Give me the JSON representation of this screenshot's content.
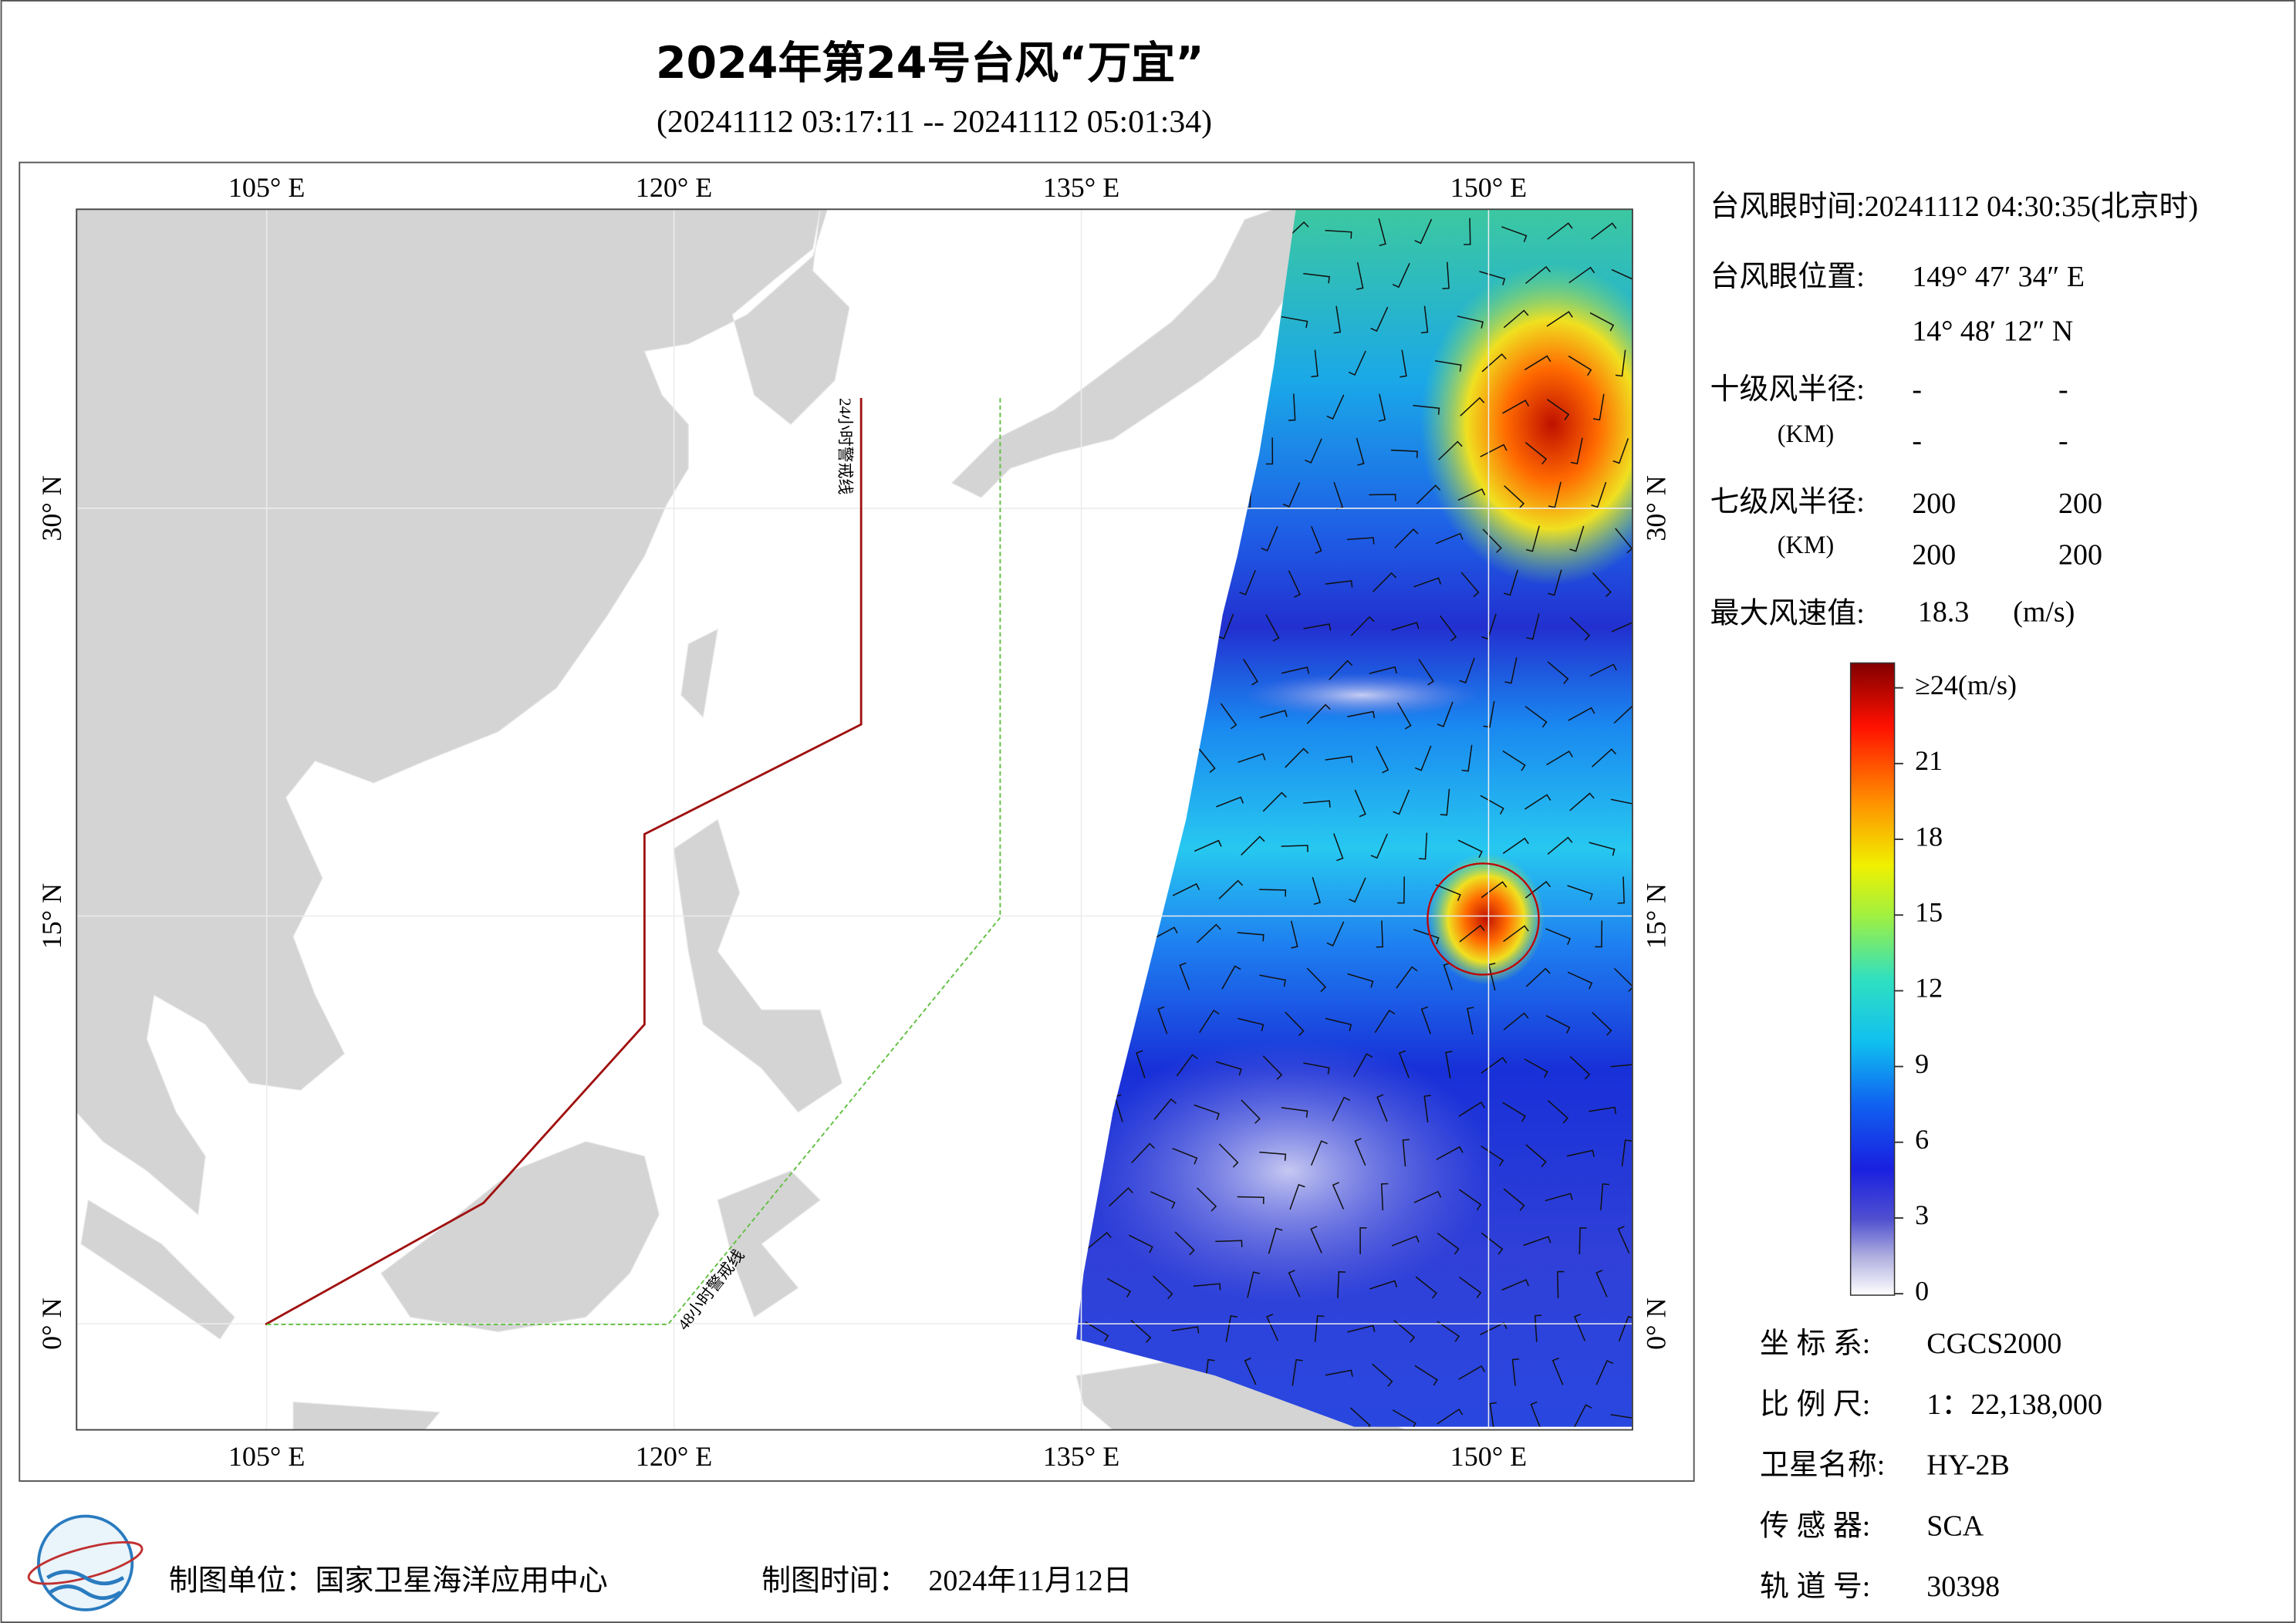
{
  "header": {
    "title": "2024年第24号台风“万宜”",
    "subtitle": "(20241112 03:17:11 -- 20241112 05:01:34)"
  },
  "map": {
    "lonlim": [
      98,
      155.3
    ],
    "latlim": [
      -3.9,
      41
    ],
    "lon_ticks": [
      {
        "value": 105,
        "label": "105° E"
      },
      {
        "value": 120,
        "label": "120° E"
      },
      {
        "value": 135,
        "label": "135° E"
      },
      {
        "value": 150,
        "label": "150° E"
      }
    ],
    "lat_ticks": [
      {
        "value": 0,
        "label": "0° N"
      },
      {
        "value": 15,
        "label": "15° N"
      },
      {
        "value": 30,
        "label": "30° N"
      }
    ],
    "warning_lines": [
      "24小时警戒线",
      "48小时警戒线"
    ]
  },
  "info": {
    "eye_time": "台风眼时间:20241112 04:30:35(北京时)",
    "eye_position_label": "台风眼位置:",
    "eye_lon": "149° 47′ 34″ E",
    "eye_lat": "14° 48′ 12″ N",
    "r10_label": "十级风半径:",
    "r10_unit": "(KM)",
    "r10": [
      "-",
      "-",
      "-",
      "-"
    ],
    "r7_label": "七级风半径:",
    "r7_unit": "(KM)",
    "r7": [
      200,
      200,
      200,
      200
    ],
    "max_wind_label": "最大风速值:",
    "max_wind": 18.3,
    "max_wind_unit": "(m/s)"
  },
  "colorbar": {
    "range": [
      0,
      24
    ],
    "ticks": [
      {
        "value": 24,
        "label": "≥24(m/s)"
      },
      21,
      18,
      15,
      12,
      9,
      6,
      3,
      0
    ]
  },
  "meta": [
    [
      "坐 标 系:",
      "CGCS2000"
    ],
    [
      "比 例 尺:",
      "1：22,138,000"
    ],
    [
      "卫星名称:",
      "HY-2B"
    ],
    [
      "传 感 器:",
      "SCA"
    ],
    [
      "轨 道 号:",
      30398
    ]
  ],
  "footer": {
    "unit": "制图单位：国家卫星海洋应用中心",
    "time_label": "制图时间：",
    "time": "2024年11月12日"
  }
}
